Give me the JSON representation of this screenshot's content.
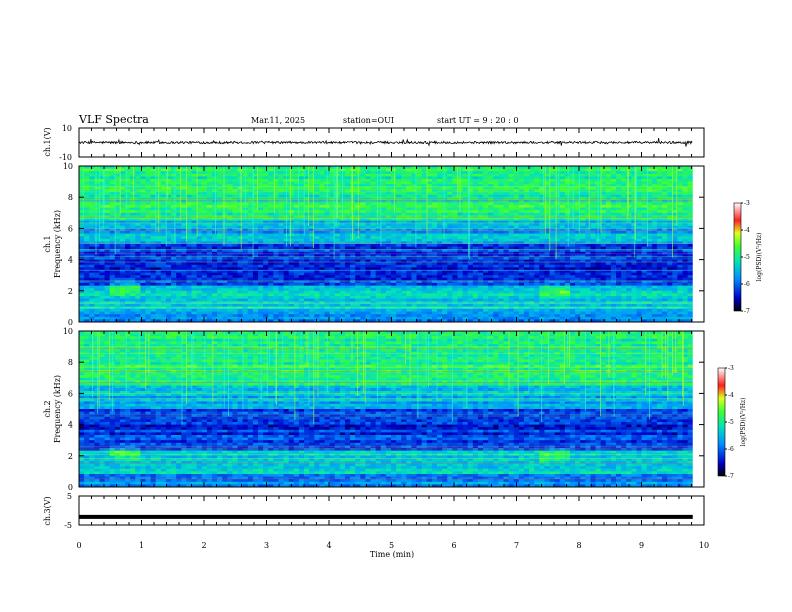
{
  "header": {
    "title": "VLF Spectra",
    "date": "Mar.11, 2025",
    "station": "station=OUI",
    "start_ut": "start  UT  =   9  : 20 : 0"
  },
  "chart_data": [
    {
      "type": "line",
      "panel": "ch1-waveform",
      "ylabel": "ch.1(V)",
      "ylim": [
        -10,
        10
      ],
      "ytick_labels": [
        "10",
        "-10"
      ],
      "xlim": [
        0,
        10
      ],
      "baseline": 0,
      "color": "#000000"
    },
    {
      "type": "heatmap",
      "panel": "ch1-spectrogram",
      "ylabel_channel": "ch.1",
      "ylabel": "Frequency (kHz)",
      "ylim": [
        0,
        10
      ],
      "ytick_labels": [
        "0",
        "2",
        "4",
        "6",
        "8",
        "10"
      ],
      "xlim": [
        0,
        10
      ],
      "colorbar": {
        "label": "log(PSD)(V²/Hz)",
        "range": [
          -7,
          -3
        ],
        "tick_labels": [
          "-3",
          "-4",
          "-5",
          "-6",
          "-7"
        ]
      },
      "features": [
        {
          "label": "",
          "x_min": 0.6,
          "freq_khz": 2.2
        },
        {
          "label": "",
          "x_min": 7.5,
          "freq_khz": 2.0
        }
      ]
    },
    {
      "type": "heatmap",
      "panel": "ch2-spectrogram",
      "ylabel_channel": "ch.2",
      "ylabel": "Frequency (kHz)",
      "ylim": [
        0,
        10
      ],
      "ytick_labels": [
        "0",
        "2",
        "4",
        "6",
        "8",
        "10"
      ],
      "xlim": [
        0,
        10
      ],
      "colorbar": {
        "label": "log(PSD)(V²/Hz)",
        "range": [
          -7,
          -3
        ],
        "tick_labels": [
          "-3",
          "-4",
          "-5",
          "-6",
          "-7"
        ]
      },
      "features": [
        {
          "label": "",
          "x_min": 0.6,
          "freq_khz": 2.2
        },
        {
          "label": "",
          "x_min": 7.5,
          "freq_khz": 2.0
        }
      ]
    },
    {
      "type": "line",
      "panel": "ch3-waveform",
      "ylabel": "ch.3(V)",
      "ylim": [
        -5,
        5
      ],
      "ytick_labels": [
        "5",
        "-5"
      ],
      "xlim": [
        0,
        10
      ],
      "baseline": -2.2,
      "color": "#000000"
    }
  ],
  "xaxis": {
    "label": "Time (min)",
    "ticks": [
      0,
      1,
      2,
      3,
      4,
      5,
      6,
      7,
      8,
      9,
      10
    ],
    "tick_labels": [
      "0",
      "1",
      "2",
      "3",
      "4",
      "5",
      "6",
      "7",
      "8",
      "9",
      "10"
    ],
    "data_end": 9.82
  }
}
